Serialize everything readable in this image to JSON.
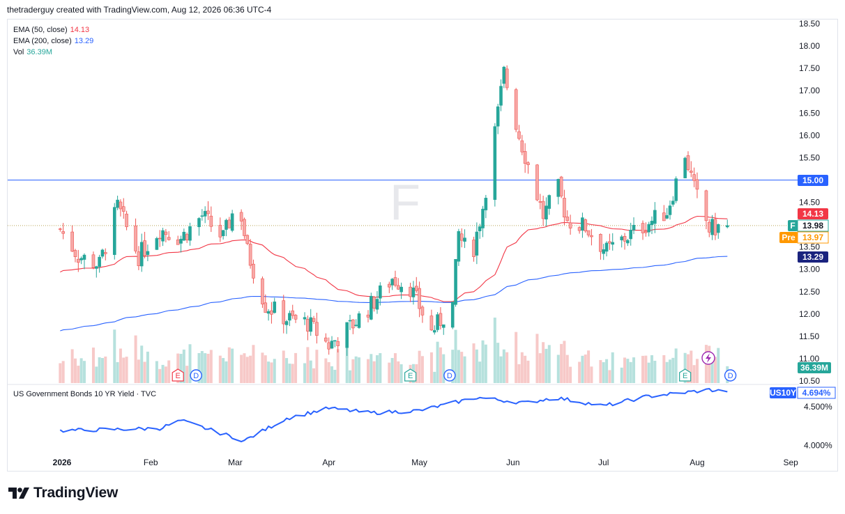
{
  "header": {
    "attribution": "thetraderguy created with TradingView.com, Aug 12, 2026 06:36 UTC-4"
  },
  "legend": {
    "ema50": {
      "label": "EMA (50, close)",
      "value": "14.13",
      "color": "#f23645"
    },
    "ema200": {
      "label": "EMA (200, close)",
      "value": "13.29",
      "color": "#2962ff"
    },
    "vol": {
      "label": "Vol",
      "value": "36.39M",
      "color": "#26a69a"
    }
  },
  "lower_pane": {
    "title": "US Government Bonds 10 YR Yield · TVC",
    "symbol": "US10Y",
    "value": "4.694%"
  },
  "symbol_watermark": "F",
  "price_labels": {
    "level": "15.00",
    "ema50": "14.13",
    "last_symbol": "F",
    "last": "13.98",
    "pre_tag": "Pre",
    "pre": "13.97",
    "ema200": "13.29",
    "volume": "36.39M"
  },
  "events": [
    {
      "type": "earnings",
      "letter": "E",
      "month": "Feb",
      "color": "#f23645"
    },
    {
      "type": "dividend",
      "letter": "D",
      "month": "Feb",
      "color": "#2962ff"
    },
    {
      "type": "earnings",
      "letter": "E",
      "month": "Apr",
      "color": "#26a69a"
    },
    {
      "type": "dividend",
      "letter": "D",
      "month": "May",
      "color": "#2962ff"
    },
    {
      "type": "earnings",
      "letter": "E",
      "month": "Jul",
      "color": "#26a69a"
    },
    {
      "type": "dividend",
      "letter": "D",
      "month": "Aug",
      "color": "#2962ff"
    }
  ],
  "colors": {
    "up": "#26a69a",
    "down": "#ef5350",
    "ema50": "#f23645",
    "ema200": "#2962ff",
    "hline": "#2962ff",
    "yield": "#2962ff"
  },
  "brand": "TradingView",
  "chart_data": [
    {
      "type": "candlestick",
      "title": "F",
      "ylim": [
        10.5,
        18.5
      ],
      "yticks": [
        "18.50",
        "18.00",
        "17.50",
        "17.00",
        "16.50",
        "16.00",
        "15.50",
        "15.00",
        "14.50",
        "14.00",
        "13.50",
        "13.00",
        "12.50",
        "12.00",
        "11.50",
        "11.00",
        "10.50"
      ],
      "x_ticks": [
        "2026",
        "Feb",
        "Mar",
        "Apr",
        "May",
        "Jun",
        "Jul",
        "Aug",
        "Sep"
      ],
      "horizontal_line": 15.0,
      "last_close": 13.98,
      "premarket": 13.97,
      "checkpoints": [
        {
          "date": "Jan 2",
          "price": 13.9
        },
        {
          "date": "Jan 8",
          "price": 13.3
        },
        {
          "date": "Jan 15",
          "price": 13.1
        },
        {
          "date": "Jan 21",
          "price": 14.4
        },
        {
          "date": "Jan 28",
          "price": 13.3
        },
        {
          "date": "Feb 4",
          "price": 13.9
        },
        {
          "date": "Feb 11",
          "price": 13.7
        },
        {
          "date": "Feb 18",
          "price": 14.2
        },
        {
          "date": "Feb 25",
          "price": 13.7
        },
        {
          "date": "Mar 2",
          "price": 14.6
        },
        {
          "date": "Mar 5",
          "price": 13.4
        },
        {
          "date": "Mar 11",
          "price": 12.2
        },
        {
          "date": "Mar 18",
          "price": 11.9
        },
        {
          "date": "Mar 25",
          "price": 11.8
        },
        {
          "date": "Apr 1",
          "price": 11.3
        },
        {
          "date": "Apr 8",
          "price": 11.7
        },
        {
          "date": "Apr 15",
          "price": 12.2
        },
        {
          "date": "Apr 22",
          "price": 12.8
        },
        {
          "date": "Apr 28",
          "price": 12.6
        },
        {
          "date": "May 5",
          "price": 11.6
        },
        {
          "date": "May 12",
          "price": 12.2
        },
        {
          "date": "May 14",
          "price": 13.8
        },
        {
          "date": "May 18",
          "price": 13.2
        },
        {
          "date": "May 22",
          "price": 14.4
        },
        {
          "date": "May 27",
          "price": 16.5
        },
        {
          "date": "May 29",
          "price": 17.4
        },
        {
          "date": "Jun 3",
          "price": 16.0
        },
        {
          "date": "Jun 8",
          "price": 14.9
        },
        {
          "date": "Jun 11",
          "price": 14.2
        },
        {
          "date": "Jun 16",
          "price": 14.8
        },
        {
          "date": "Jun 19",
          "price": 14.1
        },
        {
          "date": "Jun 25",
          "price": 13.95
        },
        {
          "date": "Jul 2",
          "price": 13.4
        },
        {
          "date": "Jul 8",
          "price": 13.7
        },
        {
          "date": "Jul 15",
          "price": 14.0
        },
        {
          "date": "Jul 22",
          "price": 14.3
        },
        {
          "date": "Jul 28",
          "price": 15.6
        },
        {
          "date": "Jul 31",
          "price": 14.8
        },
        {
          "date": "Aug 5",
          "price": 13.9
        },
        {
          "date": "Aug 11",
          "price": 13.98
        }
      ],
      "ema50_end": 14.13,
      "ema200_end": 13.29,
      "volume_last": "36.39M"
    },
    {
      "type": "line",
      "title": "US Government Bonds 10 YR Yield · TVC",
      "yticks": [
        "4.500%",
        "4.000%"
      ],
      "last": 4.694,
      "checkpoints": [
        {
          "date": "Jan 2",
          "value": 4.19
        },
        {
          "date": "Feb 4",
          "value": 4.22
        },
        {
          "date": "Feb 11",
          "value": 4.32
        },
        {
          "date": "Mar 4",
          "value": 4.06
        },
        {
          "date": "Mar 18",
          "value": 4.35
        },
        {
          "date": "Apr 1",
          "value": 4.48
        },
        {
          "date": "Apr 15",
          "value": 4.42
        },
        {
          "date": "May 1",
          "value": 4.45
        },
        {
          "date": "May 20",
          "value": 4.62
        },
        {
          "date": "Jun 5",
          "value": 4.55
        },
        {
          "date": "Jun 15",
          "value": 4.62
        },
        {
          "date": "Jul 1",
          "value": 4.51
        },
        {
          "date": "Jul 15",
          "value": 4.63
        },
        {
          "date": "Aug 5",
          "value": 4.72
        },
        {
          "date": "Aug 11",
          "value": 4.694
        }
      ]
    }
  ]
}
